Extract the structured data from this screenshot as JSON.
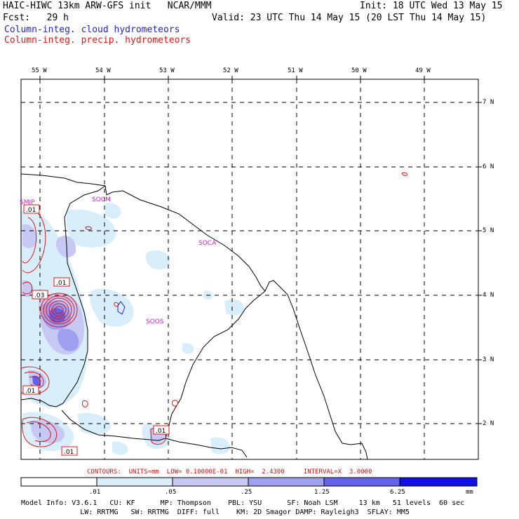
{
  "header": {
    "line1_left": "HAIC-HIWC 13km ARW-GFS init   NCAR/MMM",
    "line1_right": "Init: 18 UTC Wed 13 May 15",
    "line2_left": "Fcst:   29 h",
    "line2_right": "Valid: 23 UTC Thu 14 May 15 (20 LST Thu 14 May 15)",
    "field1": "Column-integ. cloud hydrometeors",
    "field2": "Column-integ. precip. hydrometeors"
  },
  "colors": {
    "cloud": "#1f1fd6",
    "precip": "#e01818",
    "station": "#cc22cc",
    "colorbar": [
      "#ffffff",
      "#d8eefa",
      "#c8c8f4",
      "#a0a0f0",
      "#6262ea",
      "#3030e0",
      "#1010e6"
    ]
  },
  "map": {
    "lon_labels": [
      "55 W",
      "54 W",
      "53 W",
      "52 W",
      "51 W",
      "50 W",
      "49 W"
    ],
    "lat_labels": [
      "7 N",
      "6 N",
      "5 N",
      "4 N",
      "3 N",
      "2 N"
    ],
    "stations": [
      "SMJP",
      "SOCM",
      "SOCA",
      "SOOS"
    ],
    "contour_labels": [
      ".01",
      ".01",
      ".03",
      ".01",
      ".01",
      ".01"
    ]
  },
  "footer": {
    "contours_line": "CONTOURS:  UNITS=mm  LOW= 0.10000E-01  HIGH=  2.4300     INTERVAL=X  3.0000",
    "colorbar_ticks": [
      ".01",
      ".05",
      ".25",
      "1.25",
      "6.25"
    ],
    "colorbar_unit": "mm",
    "model_line1": "Model Info: V3.6.1   CU: KF      MP: Thompson    PBL: YSU      SF: Noah LSM     13 km   51 levels  60 sec",
    "model_line2": "              LW: RRTMG   SW: RRTMG  DIFF: full    KM: 2D Smagor DAMP: Rayleigh3  SFLAY: MM5"
  }
}
